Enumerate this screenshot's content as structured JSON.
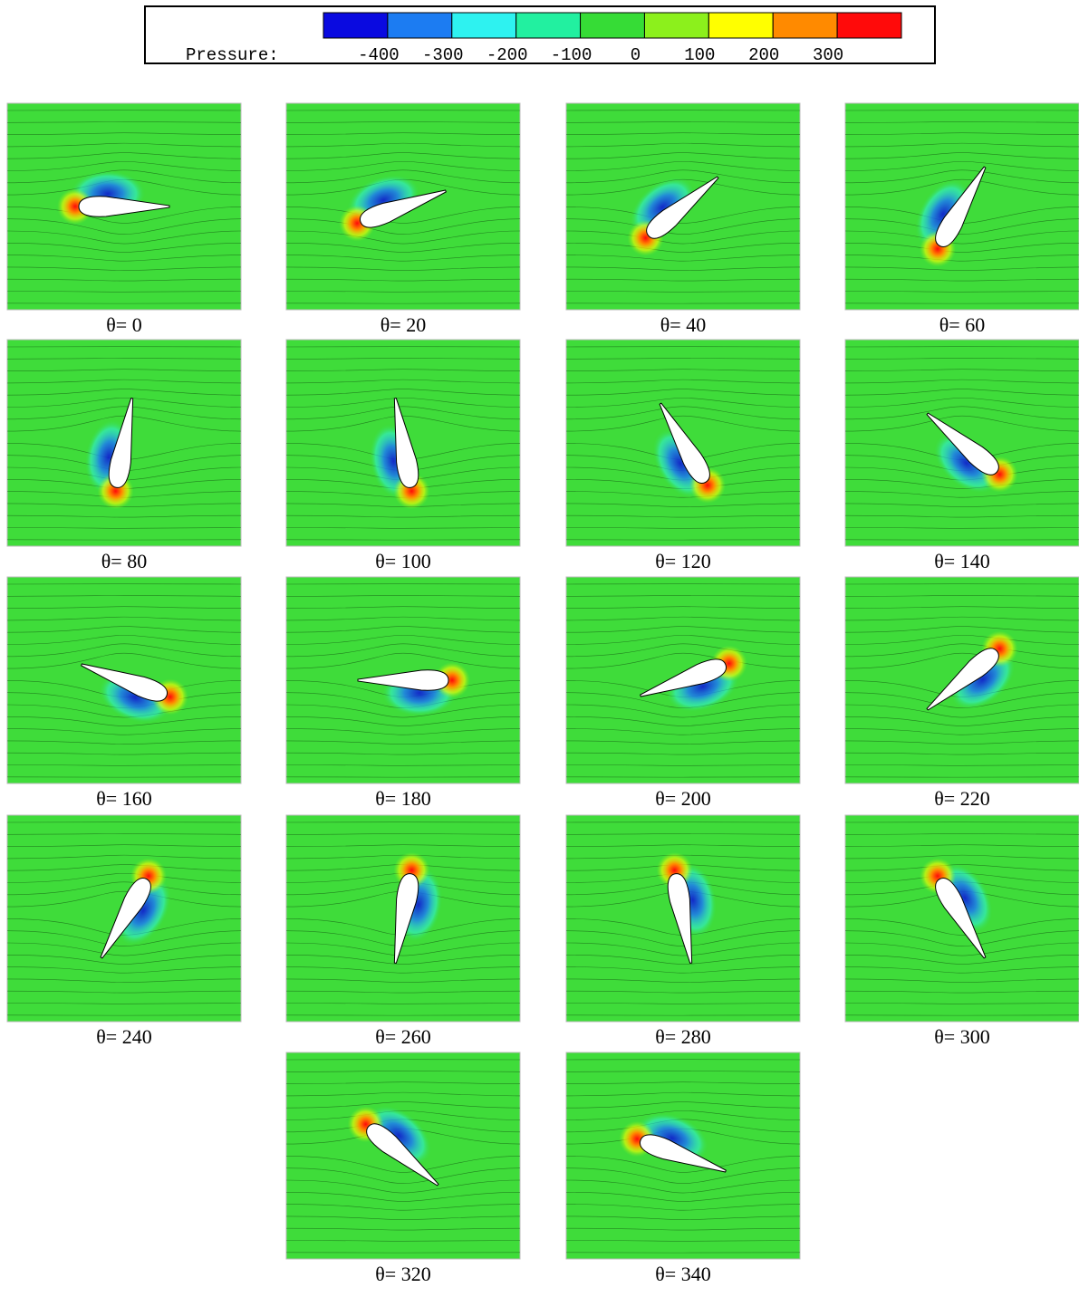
{
  "colorbar": {
    "label": "Pressure:",
    "ticks": [
      -400,
      -300,
      -200,
      -100,
      0,
      100,
      200,
      300
    ],
    "colors": [
      "#0a0ae0",
      "#1c7cf2",
      "#2ef2f0",
      "#22f0a0",
      "#36dc36",
      "#8cf01c",
      "#ffff00",
      "#ff8a00",
      "#ff0a0a"
    ]
  },
  "panels": [
    {
      "label": "θ= 0",
      "theta": 0
    },
    {
      "label": "θ= 20",
      "theta": 20
    },
    {
      "label": "θ= 40",
      "theta": 40
    },
    {
      "label": "θ= 60",
      "theta": 60
    },
    {
      "label": "θ= 80",
      "theta": 80
    },
    {
      "label": "θ= 100",
      "theta": 100
    },
    {
      "label": "θ= 120",
      "theta": 120
    },
    {
      "label": "θ= 140",
      "theta": 140
    },
    {
      "label": "θ= 160",
      "theta": 160
    },
    {
      "label": "θ= 180",
      "theta": 180
    },
    {
      "label": "θ= 200",
      "theta": 200
    },
    {
      "label": "θ= 220",
      "theta": 220
    },
    {
      "label": "θ= 240",
      "theta": 240
    },
    {
      "label": "θ= 260",
      "theta": 260
    },
    {
      "label": "θ= 280",
      "theta": 280
    },
    {
      "label": "θ= 300",
      "theta": 300
    },
    {
      "label": "θ= 320",
      "theta": 320
    },
    {
      "label": "θ= 340",
      "theta": 340
    }
  ]
}
